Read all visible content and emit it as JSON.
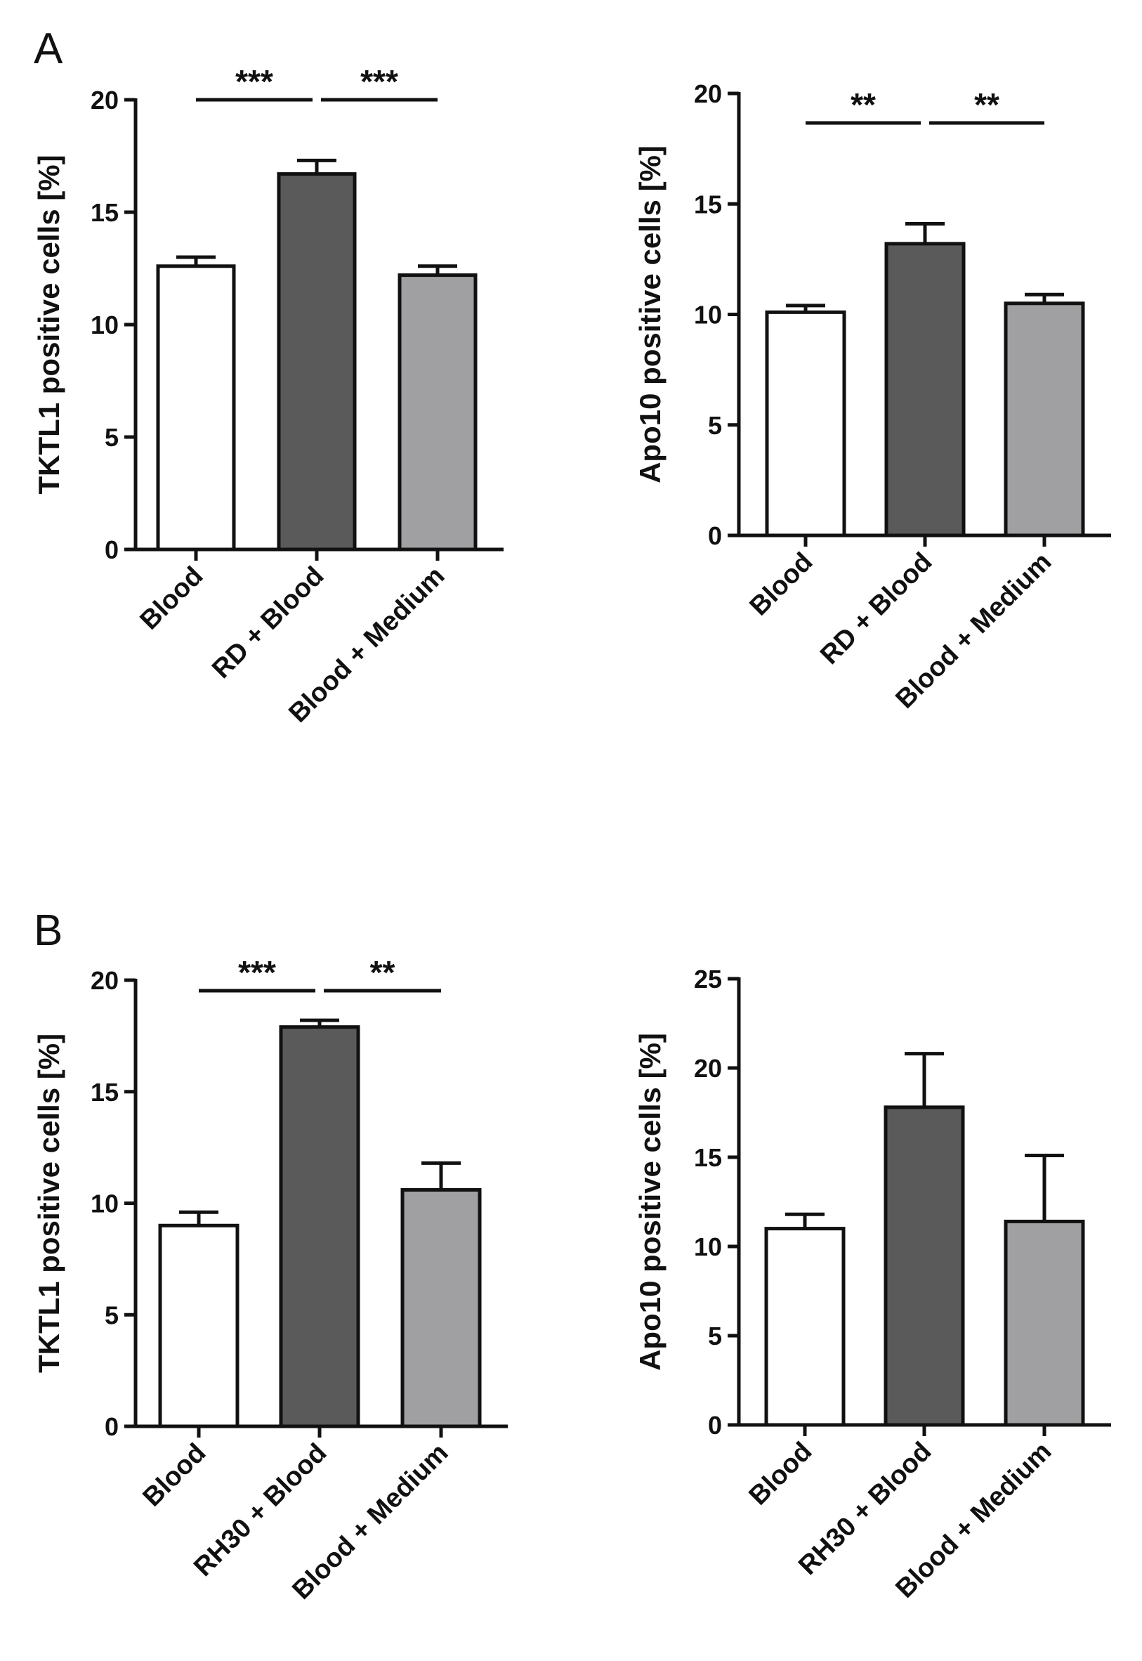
{
  "panel_labels": [
    "A",
    "B"
  ],
  "chart_data": [
    {
      "panel": "A",
      "type": "bar",
      "ylabel": "TKTL1 positive cells [%]",
      "ylim": [
        0,
        20
      ],
      "yticks": [
        "0",
        "5",
        "10",
        "15",
        "20"
      ],
      "yticks_values": [
        0,
        5,
        10,
        15,
        20
      ],
      "categories": [
        "Blood",
        "RD + Blood",
        "Blood + Medium"
      ],
      "values": [
        12.6,
        16.7,
        12.2
      ],
      "errors": [
        0.4,
        0.6,
        0.4
      ],
      "colors": [
        "#ffffff",
        "#5a5a5a",
        "#a0a0a3"
      ],
      "significance": [
        {
          "from": 0,
          "to": 1,
          "label": "***"
        },
        {
          "from": 1,
          "to": 2,
          "label": "***"
        }
      ]
    },
    {
      "panel": "A",
      "type": "bar",
      "ylabel": "Apo10 positive cells [%]",
      "ylim": [
        0,
        20
      ],
      "yticks": [
        "0",
        "5",
        "10",
        "15",
        "20"
      ],
      "yticks_values": [
        0,
        5,
        10,
        15,
        20
      ],
      "categories": [
        "Blood",
        "RD + Blood",
        "Blood + Medium"
      ],
      "values": [
        10.1,
        13.2,
        10.5
      ],
      "errors": [
        0.3,
        0.9,
        0.4
      ],
      "colors": [
        "#ffffff",
        "#5a5a5a",
        "#a0a0a3"
      ],
      "significance": [
        {
          "from": 0,
          "to": 1,
          "label": "**"
        },
        {
          "from": 1,
          "to": 2,
          "label": "**"
        }
      ]
    },
    {
      "panel": "B",
      "type": "bar",
      "ylabel": "TKTL1 positive cells [%]",
      "ylim": [
        0,
        20
      ],
      "yticks": [
        "0",
        "5",
        "10",
        "15",
        "20"
      ],
      "yticks_values": [
        0,
        5,
        10,
        15,
        20
      ],
      "categories": [
        "Blood",
        "RH30 + Blood",
        "Blood + Medium"
      ],
      "values": [
        9.0,
        17.9,
        10.6
      ],
      "errors": [
        0.6,
        0.3,
        1.2
      ],
      "colors": [
        "#ffffff",
        "#5a5a5a",
        "#a0a0a3"
      ],
      "significance": [
        {
          "from": 0,
          "to": 1,
          "label": "***"
        },
        {
          "from": 1,
          "to": 2,
          "label": "**"
        }
      ]
    },
    {
      "panel": "B",
      "type": "bar",
      "ylabel": "Apo10 positive cells [%]",
      "ylim": [
        0,
        25
      ],
      "yticks": [
        "0",
        "5",
        "10",
        "15",
        "20",
        "25"
      ],
      "yticks_values": [
        0,
        5,
        10,
        15,
        20,
        25
      ],
      "categories": [
        "Blood",
        "RH30 + Blood",
        "Blood + Medium"
      ],
      "values": [
        11.0,
        17.8,
        11.4
      ],
      "errors": [
        0.8,
        3.0,
        3.7
      ],
      "colors": [
        "#ffffff",
        "#5a5a5a",
        "#a0a0a3"
      ],
      "significance": []
    }
  ]
}
